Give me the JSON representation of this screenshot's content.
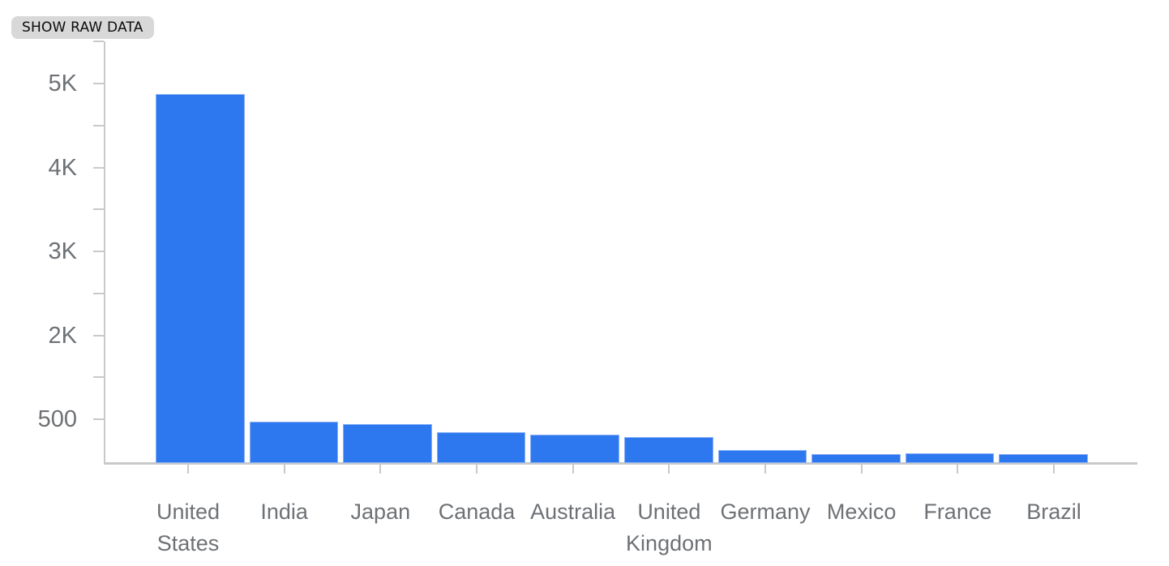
{
  "toolbar": {
    "show_raw_data_label": "SHOW RAW DATA"
  },
  "chart_data": {
    "type": "bar",
    "categories": [
      "United States",
      "India",
      "Japan",
      "Canada",
      "Australia",
      "United Kingdom",
      "Germany",
      "Mexico",
      "France",
      "Brazil"
    ],
    "values": [
      4880,
      470,
      440,
      345,
      315,
      290,
      135,
      95,
      100,
      95
    ],
    "y_tick_labels": [
      "5K",
      "4K",
      "3K",
      "2K",
      "500"
    ],
    "y_tick_values": [
      5000,
      4000,
      3000,
      2000,
      500
    ],
    "ylim": [
      0,
      5500
    ],
    "grid": false,
    "bar_color": "#2e78ef",
    "bar_border_color": "#8ab1f6",
    "axis_color": "#c8c9cb",
    "label_color": "#6e7175"
  }
}
